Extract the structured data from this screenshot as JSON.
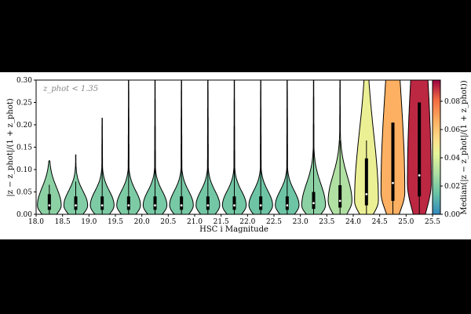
{
  "chart_data": {
    "type": "violin",
    "xlabel": "HSC i Magnitude",
    "ylabel": "|z − z_phot|/(1 + z_phot)",
    "annotation": "z_phot < 1.35",
    "xlim": [
      18.0,
      25.5
    ],
    "ylim": [
      0.0,
      0.3
    ],
    "x_ticks": [
      "18.0",
      "18.5",
      "19.0",
      "19.5",
      "20.0",
      "20.5",
      "21.0",
      "21.5",
      "22.0",
      "22.5",
      "23.0",
      "23.5",
      "24.0",
      "24.5",
      "25.0",
      "25.5"
    ],
    "y_ticks": [
      "0.00",
      "0.05",
      "0.10",
      "0.15",
      "0.20",
      "0.25",
      "0.30"
    ],
    "colorbar": {
      "label": "Median(|z − z_phot|/(1 + z_phot))",
      "range": [
        0.0,
        0.095
      ],
      "ticks": [
        "0.00",
        "0.02",
        "0.04",
        "0.06",
        "0.08"
      ],
      "colormap": "Spectral_r"
    },
    "violins": [
      {
        "x": 18.25,
        "median": 0.02,
        "q1": 0.01,
        "q3": 0.045,
        "max": 0.12,
        "mode": 0.02,
        "width": 0.45,
        "color_value": 0.022
      },
      {
        "x": 18.75,
        "median": 0.02,
        "q1": 0.01,
        "q3": 0.04,
        "max": 0.133,
        "mode": 0.02,
        "width": 0.45,
        "color_value": 0.02
      },
      {
        "x": 19.25,
        "median": 0.02,
        "q1": 0.01,
        "q3": 0.04,
        "max": 0.215,
        "mode": 0.02,
        "width": 0.45,
        "color_value": 0.019
      },
      {
        "x": 19.75,
        "median": 0.02,
        "q1": 0.01,
        "q3": 0.04,
        "max": 0.3,
        "mode": 0.02,
        "width": 0.45,
        "color_value": 0.019
      },
      {
        "x": 20.25,
        "median": 0.02,
        "q1": 0.01,
        "q3": 0.04,
        "max": 0.3,
        "mode": 0.02,
        "width": 0.45,
        "color_value": 0.018
      },
      {
        "x": 20.75,
        "median": 0.02,
        "q1": 0.01,
        "q3": 0.04,
        "max": 0.3,
        "mode": 0.02,
        "width": 0.45,
        "color_value": 0.018
      },
      {
        "x": 21.25,
        "median": 0.02,
        "q1": 0.01,
        "q3": 0.04,
        "max": 0.3,
        "mode": 0.02,
        "width": 0.45,
        "color_value": 0.017
      },
      {
        "x": 21.75,
        "median": 0.02,
        "q1": 0.01,
        "q3": 0.04,
        "max": 0.3,
        "mode": 0.02,
        "width": 0.45,
        "color_value": 0.017
      },
      {
        "x": 22.25,
        "median": 0.02,
        "q1": 0.01,
        "q3": 0.04,
        "max": 0.3,
        "mode": 0.02,
        "width": 0.45,
        "color_value": 0.016
      },
      {
        "x": 22.75,
        "median": 0.02,
        "q1": 0.01,
        "q3": 0.04,
        "max": 0.3,
        "mode": 0.02,
        "width": 0.45,
        "color_value": 0.016
      },
      {
        "x": 23.25,
        "median": 0.025,
        "q1": 0.012,
        "q3": 0.05,
        "max": 0.3,
        "mode": 0.02,
        "width": 0.45,
        "color_value": 0.022
      },
      {
        "x": 23.75,
        "median": 0.03,
        "q1": 0.015,
        "q3": 0.065,
        "max": 0.3,
        "mode": 0.03,
        "width": 0.45,
        "color_value": 0.03
      },
      {
        "x": 24.25,
        "median": 0.045,
        "q1": 0.02,
        "q3": 0.125,
        "max": 0.3,
        "mode": 0.03,
        "width": 0.45,
        "color_value": 0.045
      },
      {
        "x": 24.75,
        "median": 0.07,
        "q1": 0.03,
        "q3": 0.205,
        "max": 0.3,
        "mode": 0.05,
        "width": 0.45,
        "color_value": 0.066
      },
      {
        "x": 25.25,
        "median": 0.087,
        "q1": 0.04,
        "q3": 0.25,
        "max": 0.3,
        "mode": 0.07,
        "width": 0.45,
        "color_value": 0.09
      }
    ]
  }
}
